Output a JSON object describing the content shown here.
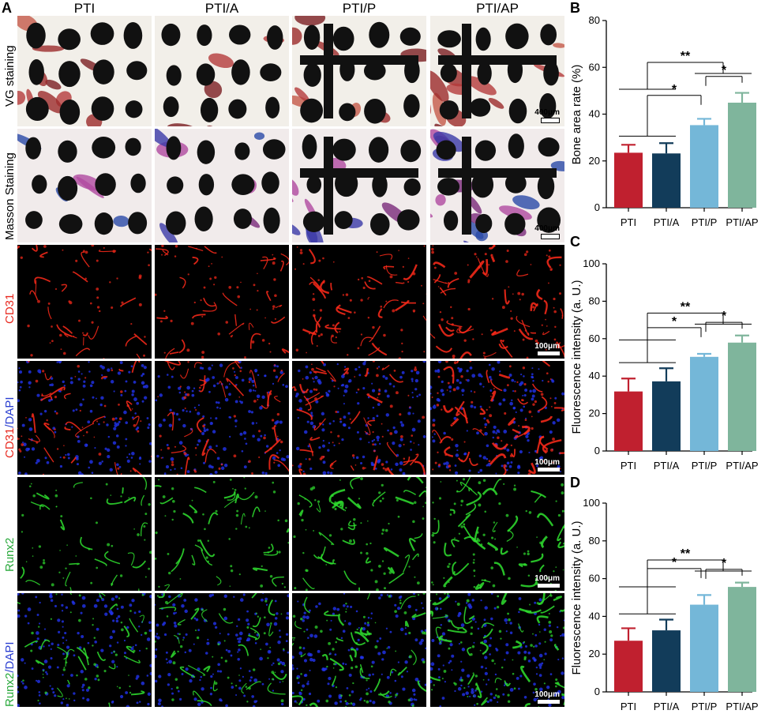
{
  "panel_a": {
    "letter": "A",
    "columns": [
      "PTI",
      "PTI/A",
      "PTI/P",
      "PTI/AP"
    ],
    "rows": [
      {
        "label": "VG staining",
        "label_color": "#000000",
        "scale": "400μm",
        "kind": "vg"
      },
      {
        "label": "Masson Staining",
        "label_color": "#000000",
        "scale": "400μm",
        "kind": "masson"
      },
      {
        "label_parts": [
          {
            "text": "CD31",
            "color": "#e8281e"
          }
        ],
        "scale": "100μm",
        "kind": "cd31"
      },
      {
        "label_parts": [
          {
            "text": "CD31",
            "color": "#e8281e"
          },
          {
            "text": "/DAPI",
            "color": "#2b3fd1"
          }
        ],
        "scale": "100μm",
        "kind": "cd31dapi"
      },
      {
        "label_parts": [
          {
            "text": "Runx2",
            "color": "#27a83a"
          }
        ],
        "scale": "100μm",
        "kind": "runx2"
      },
      {
        "label_parts": [
          {
            "text": "Runx2",
            "color": "#27a83a"
          },
          {
            "text": "/DAPI",
            "color": "#2b3fd1"
          }
        ],
        "scale": "100μm",
        "kind": "runx2dapi"
      }
    ]
  },
  "chart_data": [
    {
      "panel": "B",
      "type": "bar",
      "categories": [
        "PTI",
        "PTI/A",
        "PTI/P",
        "PTI/AP"
      ],
      "values": [
        23.5,
        23.2,
        35.3,
        44.9
      ],
      "errors": [
        3.4,
        4.4,
        2.7,
        4.2
      ],
      "colors": [
        "#c0202f",
        "#123c5a",
        "#74b7d8",
        "#7fb59c"
      ],
      "ylabel": "Bone area rate (%)",
      "ylim": [
        0,
        80
      ],
      "yticks": [
        0,
        20,
        40,
        60,
        80
      ],
      "significance": [
        "**",
        "*",
        "*"
      ]
    },
    {
      "panel": "C",
      "type": "bar",
      "categories": [
        "PTI",
        "PTI/A",
        "PTI/P",
        "PTI/AP"
      ],
      "values": [
        31.8,
        37.2,
        50.3,
        57.9
      ],
      "errors": [
        6.9,
        7.0,
        1.6,
        3.8
      ],
      "colors": [
        "#c0202f",
        "#123c5a",
        "#74b7d8",
        "#7fb59c"
      ],
      "ylabel": "Fluorescence intensity (a. U.)",
      "ylim": [
        0,
        100
      ],
      "yticks": [
        0,
        20,
        40,
        60,
        80,
        100
      ],
      "significance": [
        "**",
        "*",
        "*"
      ]
    },
    {
      "panel": "D",
      "type": "bar",
      "categories": [
        "PTI",
        "PTI/A",
        "PTI/P",
        "PTI/AP"
      ],
      "values": [
        27.1,
        32.6,
        46.2,
        55.6
      ],
      "errors": [
        6.6,
        5.7,
        5.1,
        2.3
      ],
      "colors": [
        "#c0202f",
        "#123c5a",
        "#74b7d8",
        "#7fb59c"
      ],
      "ylabel": "Fluorescence intensity (a. U.)",
      "ylim": [
        0,
        100
      ],
      "yticks": [
        0,
        20,
        40,
        60,
        80,
        100
      ],
      "significance": [
        "**",
        "*",
        "*"
      ]
    }
  ]
}
